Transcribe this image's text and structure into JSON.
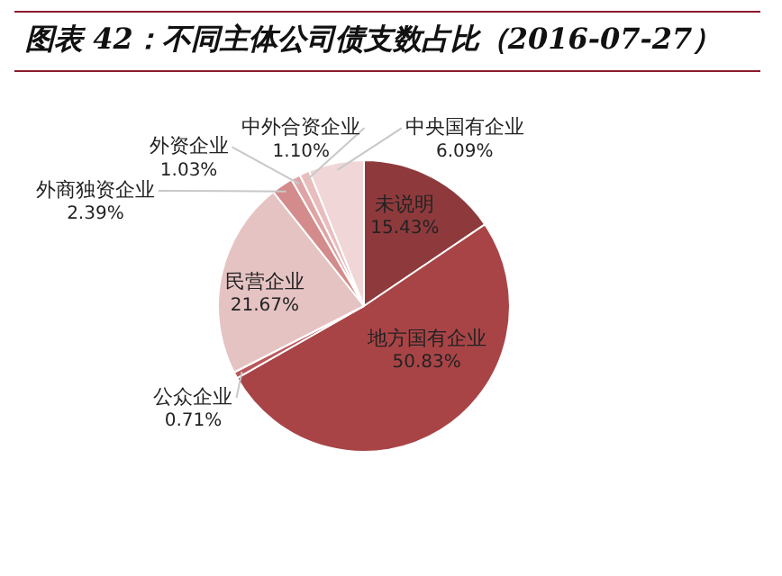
{
  "chart_data": {
    "type": "pie",
    "title": "图表 42：不同主体公司债支数占比（2016-07-27）",
    "categories": [
      "未说明",
      "地方国有企业",
      "公众企业",
      "民营企业",
      "外商独资企业",
      "外资企业",
      "中外合资企业",
      "中央国有企业"
    ],
    "values": [
      15.43,
      50.83,
      0.71,
      21.67,
      2.39,
      1.03,
      1.1,
      6.09
    ],
    "colors": [
      "#8e3a3c",
      "#a94446",
      "#b9585a",
      "#e6c3c3",
      "#d38b8c",
      "#dfa5a6",
      "#e9bdbe",
      "#f0d6d6"
    ],
    "value_labels": [
      "15.43%",
      "50.83%",
      "0.71%",
      "21.67%",
      "2.39%",
      "1.03%",
      "1.10%",
      "6.09%"
    ]
  }
}
